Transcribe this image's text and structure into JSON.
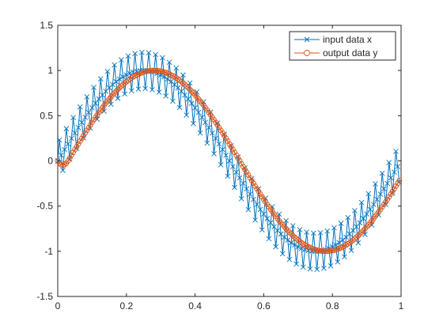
{
  "colors": {
    "input": "#0072BD",
    "output": "#D95319",
    "axis": "#262626"
  },
  "chart_data": {
    "type": "line",
    "title": "",
    "xlabel": "",
    "ylabel": "",
    "xlim": [
      0,
      1
    ],
    "ylim": [
      -1.5,
      1.5
    ],
    "x_ticks": [
      0,
      0.2,
      0.4,
      0.6,
      0.8,
      1
    ],
    "x_tick_labels": [
      "0",
      "0.2",
      "0.4",
      "0.6",
      "0.8",
      "1"
    ],
    "y_ticks": [
      -1.5,
      -1,
      -0.5,
      0,
      0.5,
      1,
      1.5
    ],
    "y_tick_labels": [
      "-1.5",
      "-1",
      "-0.5",
      "0",
      "0.5",
      "1",
      "1.5"
    ],
    "grid": false,
    "legend_position": "top-right",
    "series": [
      {
        "name": "input data x",
        "marker": "x",
        "description_of_values": "sin(2*pi*t) + 0.2*sin(2*pi*50*t) sampled at t = 0, 0.005, ..., 0.995",
        "x_start": 0,
        "x_step": 0.005,
        "count": 200,
        "base_amplitude": 1,
        "base_frequency": 1,
        "ripple_amplitude": 0.2,
        "ripple_frequency": 50
      },
      {
        "name": "output data y",
        "marker": "o",
        "x_start": 0,
        "x_step": 0.005,
        "count": 200,
        "base_amplitude": 1,
        "base_frequency": 1,
        "phase_lag": 0.03
      }
    ]
  }
}
